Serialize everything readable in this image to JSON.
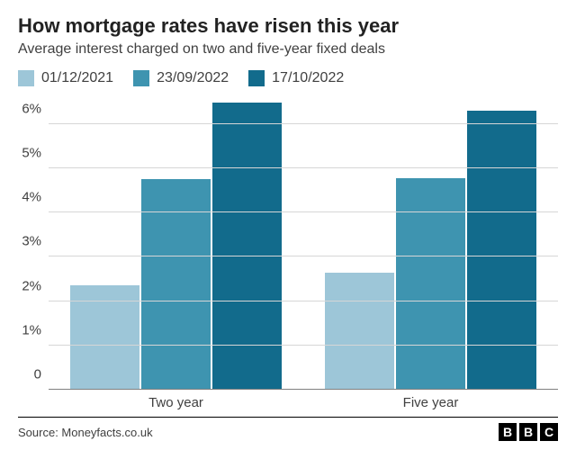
{
  "title": {
    "text": "How mortgage rates have risen this year",
    "fontsize": 22,
    "color": "#222222"
  },
  "subtitle": {
    "text": "Average interest charged on two and five-year fixed deals",
    "fontsize": 16,
    "color": "#404040"
  },
  "legend": {
    "fontsize": 16,
    "items": [
      {
        "label": "01/12/2021",
        "color": "#9dc6d8"
      },
      {
        "label": "23/09/2022",
        "color": "#3e94b0"
      },
      {
        "label": "17/10/2022",
        "color": "#126b8c"
      }
    ]
  },
  "chart": {
    "type": "bar-grouped",
    "background_color": "#ffffff",
    "grid_color": "#d6d6d6",
    "baseline_color": "#808080",
    "ylim": [
      0,
      6.6
    ],
    "yticks": [
      {
        "v": 0,
        "label": "0"
      },
      {
        "v": 1,
        "label": "1%"
      },
      {
        "v": 2,
        "label": "2%"
      },
      {
        "v": 3,
        "label": "3%"
      },
      {
        "v": 4,
        "label": "4%"
      },
      {
        "v": 5,
        "label": "5%"
      },
      {
        "v": 6,
        "label": "6%"
      }
    ],
    "tick_fontsize": 15,
    "tick_color": "#404040",
    "categories": [
      "Two year",
      "Five year"
    ],
    "category_fontsize": 15,
    "series": [
      {
        "key": "01/12/2021",
        "color": "#9dc6d8",
        "values": [
          2.35,
          2.65
        ]
      },
      {
        "key": "23/09/2022",
        "color": "#3e94b0",
        "values": [
          4.75,
          4.77
        ]
      },
      {
        "key": "17/10/2022",
        "color": "#126b8c",
        "values": [
          6.48,
          6.3
        ]
      }
    ]
  },
  "footer": {
    "source": "Source: Moneyfacts.co.uk",
    "fontsize": 13,
    "color": "#404040",
    "logo": [
      "B",
      "B",
      "C"
    ]
  }
}
